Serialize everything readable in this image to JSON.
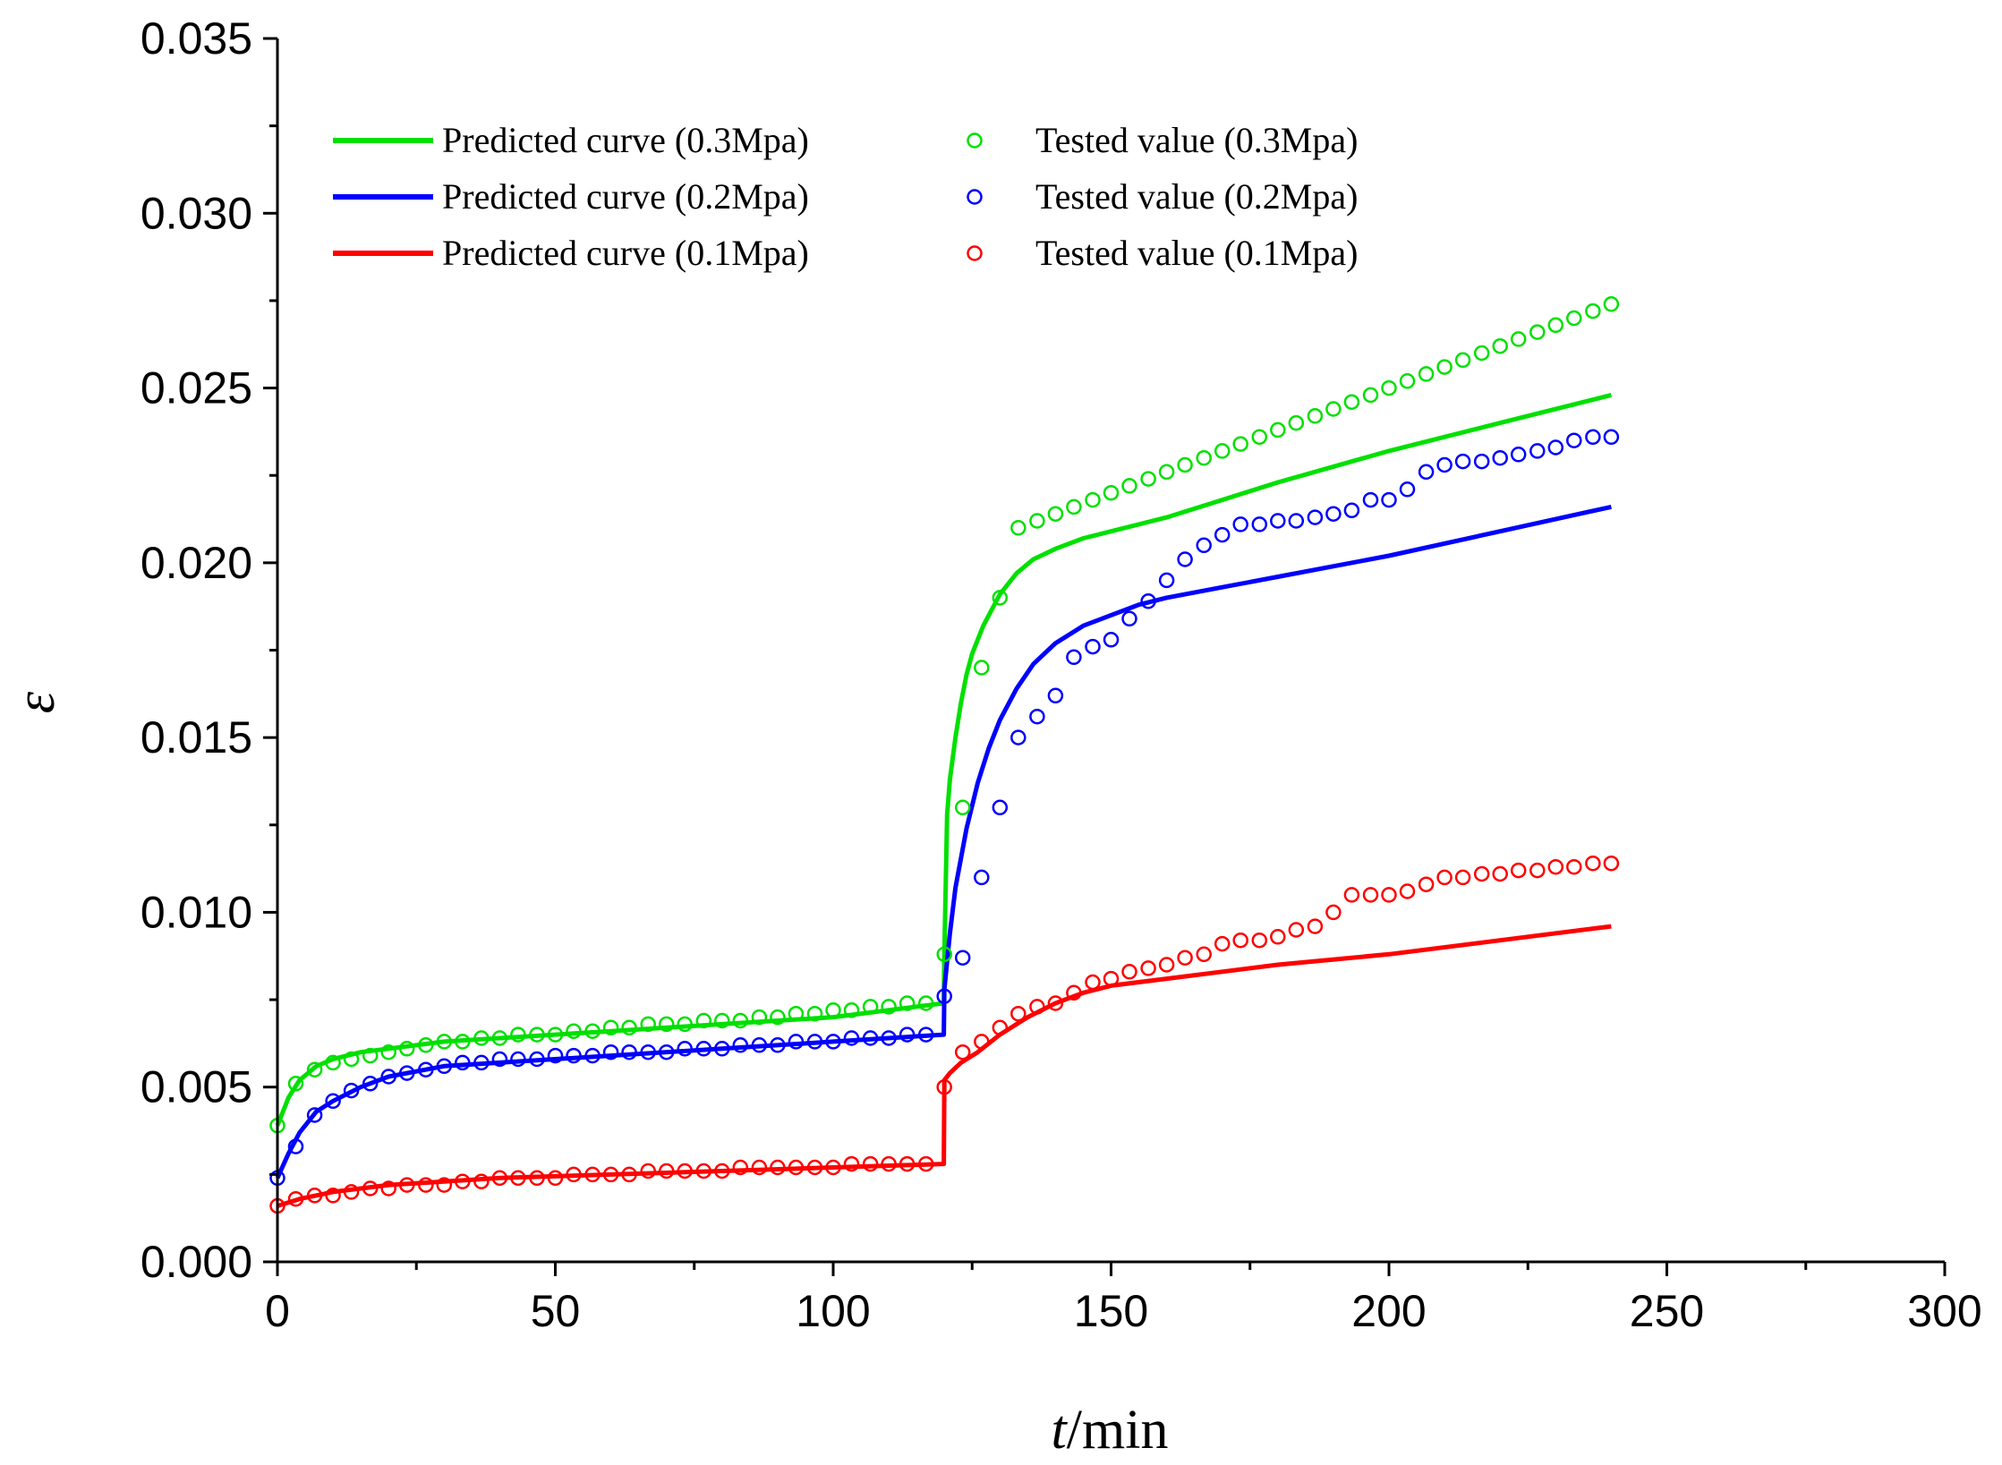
{
  "chart_data": {
    "type": "scatter",
    "title": "",
    "xlabel": "t/min",
    "xlabel_var": "t",
    "xlabel_unit": "/min",
    "ylabel": "ε",
    "xlim": [
      0,
      300
    ],
    "ylim": [
      0,
      0.035
    ],
    "xticks": [
      0,
      50,
      100,
      150,
      200,
      250,
      300
    ],
    "xtick_labels": [
      "0",
      "50",
      "100",
      "150",
      "200",
      "250",
      "300"
    ],
    "yticks": [
      0,
      0.005,
      0.01,
      0.015,
      0.02,
      0.025,
      0.03,
      0.035
    ],
    "ytick_labels": [
      "0.000",
      "0.005",
      "0.010",
      "0.015",
      "0.020",
      "0.025",
      "0.030",
      "0.035"
    ],
    "grid": false,
    "legend_position": "top-left",
    "series": [
      {
        "name": "Predicted curve (0.3Mpa)",
        "kind": "line",
        "color": "#00e000",
        "x": [
          0,
          2,
          4,
          7,
          10,
          15,
          20,
          30,
          40,
          60,
          80,
          100,
          119.9,
          120,
          120.5,
          121,
          122,
          123,
          124,
          125,
          127,
          130,
          133,
          136,
          140,
          145,
          150,
          160,
          170,
          180,
          200,
          220,
          240
        ],
        "y": [
          0.0039,
          0.0047,
          0.0052,
          0.0056,
          0.0058,
          0.006,
          0.0061,
          0.0063,
          0.0064,
          0.0066,
          0.0068,
          0.007,
          0.0074,
          0.0088,
          0.0128,
          0.0138,
          0.015,
          0.016,
          0.0168,
          0.0174,
          0.0182,
          0.0191,
          0.0197,
          0.0201,
          0.0204,
          0.0207,
          0.0209,
          0.0213,
          0.0218,
          0.0223,
          0.0232,
          0.024,
          0.0248
        ]
      },
      {
        "name": "Predicted curve (0.2Mpa)",
        "kind": "line",
        "color": "#0000ff",
        "x": [
          0,
          2,
          4,
          7,
          10,
          15,
          20,
          30,
          40,
          60,
          80,
          100,
          119.9,
          120,
          121,
          122,
          124,
          126,
          128,
          130,
          133,
          136,
          140,
          145,
          150,
          155,
          160,
          170,
          180,
          200,
          220,
          240
        ],
        "y": [
          0.0024,
          0.0031,
          0.0037,
          0.0043,
          0.0046,
          0.005,
          0.0053,
          0.0056,
          0.0057,
          0.0059,
          0.0061,
          0.0063,
          0.0065,
          0.0078,
          0.0094,
          0.0107,
          0.0124,
          0.0137,
          0.0147,
          0.0155,
          0.0164,
          0.0171,
          0.0177,
          0.0182,
          0.0185,
          0.0188,
          0.019,
          0.0193,
          0.0196,
          0.0202,
          0.0209,
          0.0216
        ]
      },
      {
        "name": "Predicted curve (0.1Mpa)",
        "kind": "line",
        "color": "#ff0000",
        "x": [
          0,
          2,
          4,
          7,
          10,
          15,
          20,
          30,
          40,
          60,
          80,
          100,
          119.9,
          120,
          121,
          123,
          126,
          130,
          135,
          140,
          145,
          150,
          160,
          170,
          180,
          200,
          220,
          240
        ],
        "y": [
          0.0016,
          0.0017,
          0.0018,
          0.0019,
          0.002,
          0.0021,
          0.0022,
          0.0023,
          0.0024,
          0.0025,
          0.0026,
          0.0027,
          0.0028,
          0.0052,
          0.0054,
          0.0057,
          0.006,
          0.0065,
          0.007,
          0.0074,
          0.0077,
          0.0079,
          0.0081,
          0.0083,
          0.0085,
          0.0088,
          0.0092,
          0.0096
        ]
      },
      {
        "name": "Tested value (0.3Mpa)",
        "kind": "markers",
        "color": "#00e000",
        "x": [
          0,
          3.3,
          6.7,
          10,
          13.3,
          16.7,
          20,
          23.3,
          26.7,
          30,
          33.3,
          36.7,
          40,
          43.3,
          46.7,
          50,
          53.3,
          56.7,
          60,
          63.3,
          66.7,
          70,
          73.3,
          76.7,
          80,
          83.3,
          86.7,
          90,
          93.3,
          96.7,
          100,
          103.3,
          106.7,
          110,
          113.3,
          116.7,
          120,
          123.3,
          126.7,
          130,
          133.3,
          136.7,
          140,
          143.3,
          146.7,
          150,
          153.3,
          156.7,
          160,
          163.3,
          166.7,
          170,
          173.3,
          176.7,
          180,
          183.3,
          186.7,
          190,
          193.3,
          196.7,
          200,
          203.3,
          206.7,
          210,
          213.3,
          216.7,
          220,
          223.3,
          226.7,
          230,
          233.3,
          236.7,
          240
        ],
        "y": [
          0.0039,
          0.0051,
          0.0055,
          0.0057,
          0.0058,
          0.0059,
          0.006,
          0.0061,
          0.0062,
          0.0063,
          0.0063,
          0.0064,
          0.0064,
          0.0065,
          0.0065,
          0.0065,
          0.0066,
          0.0066,
          0.0067,
          0.0067,
          0.0068,
          0.0068,
          0.0068,
          0.0069,
          0.0069,
          0.0069,
          0.007,
          0.007,
          0.0071,
          0.0071,
          0.0072,
          0.0072,
          0.0073,
          0.0073,
          0.0074,
          0.0074,
          0.0088,
          0.013,
          0.017,
          0.019,
          0.021,
          0.0212,
          0.0214,
          0.0216,
          0.0218,
          0.022,
          0.0222,
          0.0224,
          0.0226,
          0.0228,
          0.023,
          0.0232,
          0.0234,
          0.0236,
          0.0238,
          0.024,
          0.0242,
          0.0244,
          0.0246,
          0.0248,
          0.025,
          0.0252,
          0.0254,
          0.0256,
          0.0258,
          0.026,
          0.0262,
          0.0264,
          0.0266,
          0.0268,
          0.027,
          0.0272,
          0.0274
        ]
      },
      {
        "name": "Tested value (0.2Mpa)",
        "kind": "markers",
        "color": "#0000ff",
        "x": [
          0,
          3.3,
          6.7,
          10,
          13.3,
          16.7,
          20,
          23.3,
          26.7,
          30,
          33.3,
          36.7,
          40,
          43.3,
          46.7,
          50,
          53.3,
          56.7,
          60,
          63.3,
          66.7,
          70,
          73.3,
          76.7,
          80,
          83.3,
          86.7,
          90,
          93.3,
          96.7,
          100,
          103.3,
          106.7,
          110,
          113.3,
          116.7,
          120,
          123.3,
          126.7,
          130,
          133.3,
          136.7,
          140,
          143.3,
          146.7,
          150,
          153.3,
          156.7,
          160,
          163.3,
          166.7,
          170,
          173.3,
          176.7,
          180,
          183.3,
          186.7,
          190,
          193.3,
          196.7,
          200,
          203.3,
          206.7,
          210,
          213.3,
          216.7,
          220,
          223.3,
          226.7,
          230,
          233.3,
          236.7,
          240
        ],
        "y": [
          0.0024,
          0.0033,
          0.0042,
          0.0046,
          0.0049,
          0.0051,
          0.0053,
          0.0054,
          0.0055,
          0.0056,
          0.0057,
          0.0057,
          0.0058,
          0.0058,
          0.0058,
          0.0059,
          0.0059,
          0.0059,
          0.006,
          0.006,
          0.006,
          0.006,
          0.0061,
          0.0061,
          0.0061,
          0.0062,
          0.0062,
          0.0062,
          0.0063,
          0.0063,
          0.0063,
          0.0064,
          0.0064,
          0.0064,
          0.0065,
          0.0065,
          0.0076,
          0.0087,
          0.011,
          0.013,
          0.015,
          0.0156,
          0.0162,
          0.0173,
          0.0176,
          0.0178,
          0.0184,
          0.0189,
          0.0195,
          0.0201,
          0.0205,
          0.0208,
          0.0211,
          0.0211,
          0.0212,
          0.0212,
          0.0213,
          0.0214,
          0.0215,
          0.0218,
          0.0218,
          0.0221,
          0.0226,
          0.0228,
          0.0229,
          0.0229,
          0.023,
          0.0231,
          0.0232,
          0.0233,
          0.0235,
          0.0236,
          0.0236
        ]
      },
      {
        "name": "Tested value (0.1Mpa)",
        "kind": "markers",
        "color": "#ff0000",
        "x": [
          0,
          3.3,
          6.7,
          10,
          13.3,
          16.7,
          20,
          23.3,
          26.7,
          30,
          33.3,
          36.7,
          40,
          43.3,
          46.7,
          50,
          53.3,
          56.7,
          60,
          63.3,
          66.7,
          70,
          73.3,
          76.7,
          80,
          83.3,
          86.7,
          90,
          93.3,
          96.7,
          100,
          103.3,
          106.7,
          110,
          113.3,
          116.7,
          120,
          123.3,
          126.7,
          130,
          133.3,
          136.7,
          140,
          143.3,
          146.7,
          150,
          153.3,
          156.7,
          160,
          163.3,
          166.7,
          170,
          173.3,
          176.7,
          180,
          183.3,
          186.7,
          190,
          193.3,
          196.7,
          200,
          203.3,
          206.7,
          210,
          213.3,
          216.7,
          220,
          223.3,
          226.7,
          230,
          233.3,
          236.7,
          240
        ],
        "y": [
          0.0016,
          0.0018,
          0.0019,
          0.0019,
          0.002,
          0.0021,
          0.0021,
          0.0022,
          0.0022,
          0.0022,
          0.0023,
          0.0023,
          0.0024,
          0.0024,
          0.0024,
          0.0024,
          0.0025,
          0.0025,
          0.0025,
          0.0025,
          0.0026,
          0.0026,
          0.0026,
          0.0026,
          0.0026,
          0.0027,
          0.0027,
          0.0027,
          0.0027,
          0.0027,
          0.0027,
          0.0028,
          0.0028,
          0.0028,
          0.0028,
          0.0028,
          0.005,
          0.006,
          0.0063,
          0.0067,
          0.0071,
          0.0073,
          0.0074,
          0.0077,
          0.008,
          0.0081,
          0.0083,
          0.0084,
          0.0085,
          0.0087,
          0.0088,
          0.0091,
          0.0092,
          0.0092,
          0.0093,
          0.0095,
          0.0096,
          0.01,
          0.0105,
          0.0105,
          0.0105,
          0.0106,
          0.0108,
          0.011,
          0.011,
          0.0111,
          0.0111,
          0.0112,
          0.0112,
          0.0113,
          0.0113,
          0.0114,
          0.0114
        ]
      }
    ]
  }
}
